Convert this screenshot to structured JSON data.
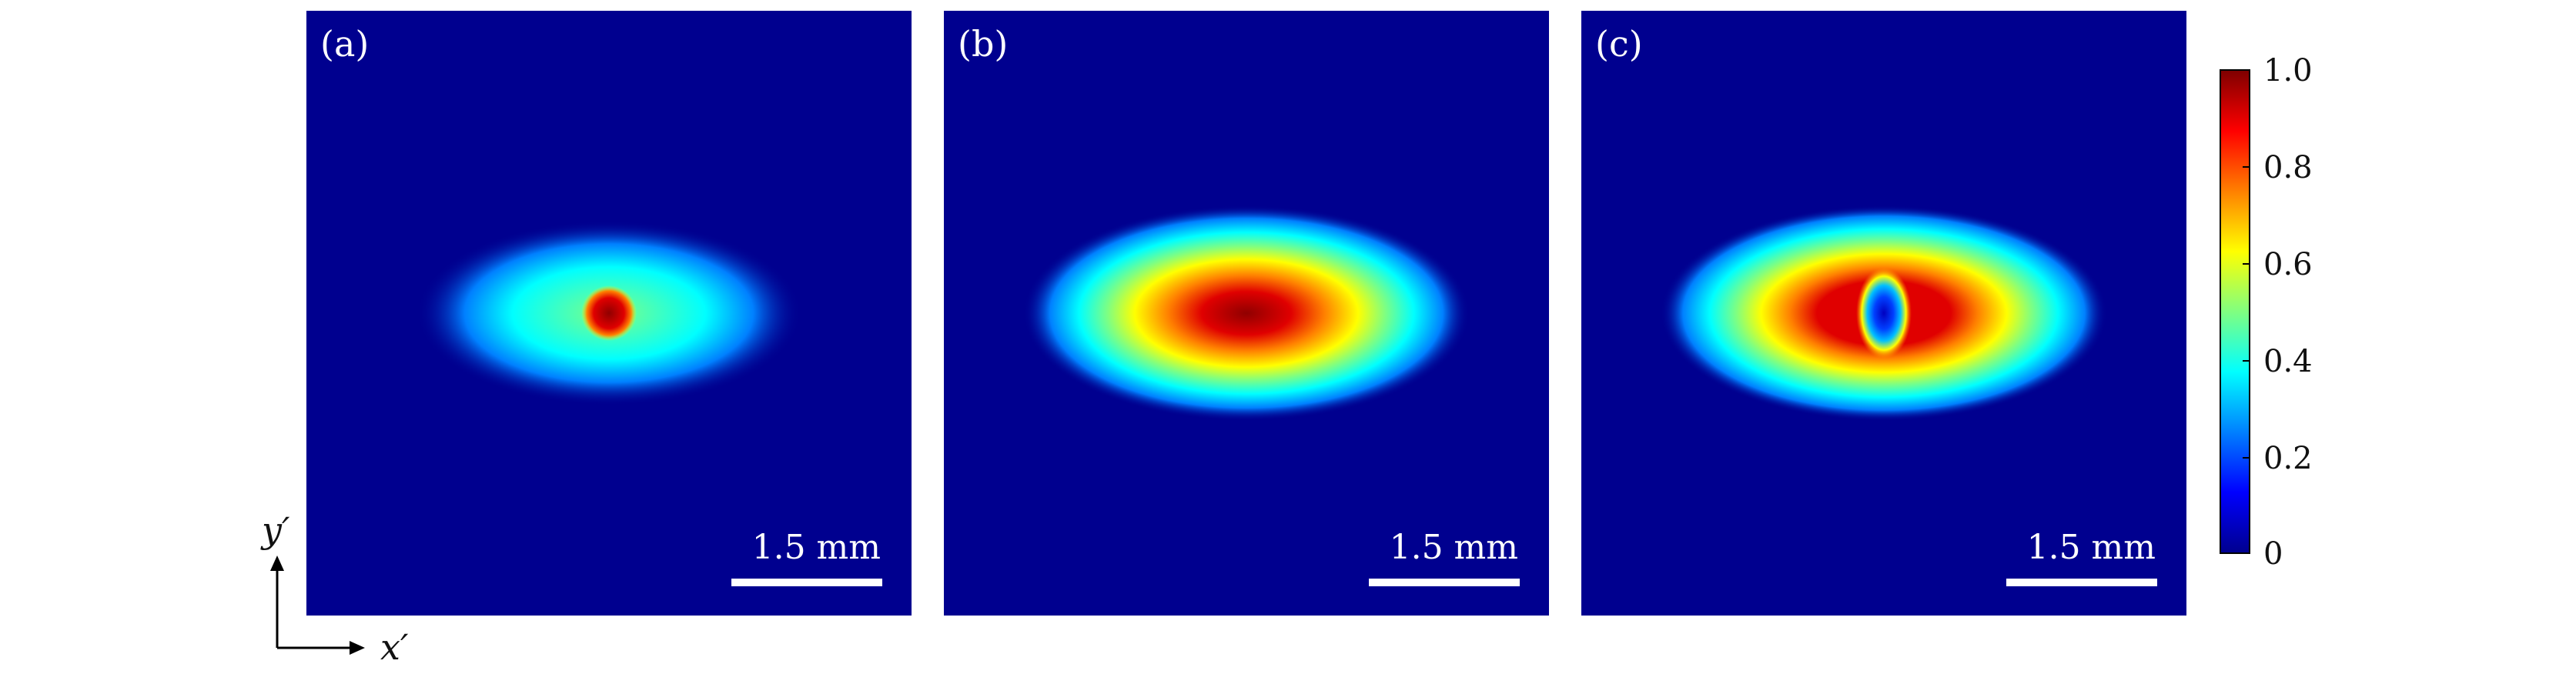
{
  "panels": [
    {
      "label": "(a)",
      "scale_text": "1.5 mm"
    },
    {
      "label": "(b)",
      "scale_text": "1.5 mm"
    },
    {
      "label": "(c)",
      "scale_text": "1.5 mm"
    }
  ],
  "colorbar": {
    "ticks": [
      "1.0",
      "0.8",
      "0.6",
      "0.4",
      "0.2",
      "0"
    ],
    "colors": {
      "deep_blue": "#00008f",
      "blue": "#0000ff",
      "cyan": "#00ffff",
      "yellow": "#ffff00",
      "red": "#ff0000",
      "dark_red": "#800000"
    }
  },
  "axes": {
    "x_label": "x′",
    "y_label": "y′"
  }
}
